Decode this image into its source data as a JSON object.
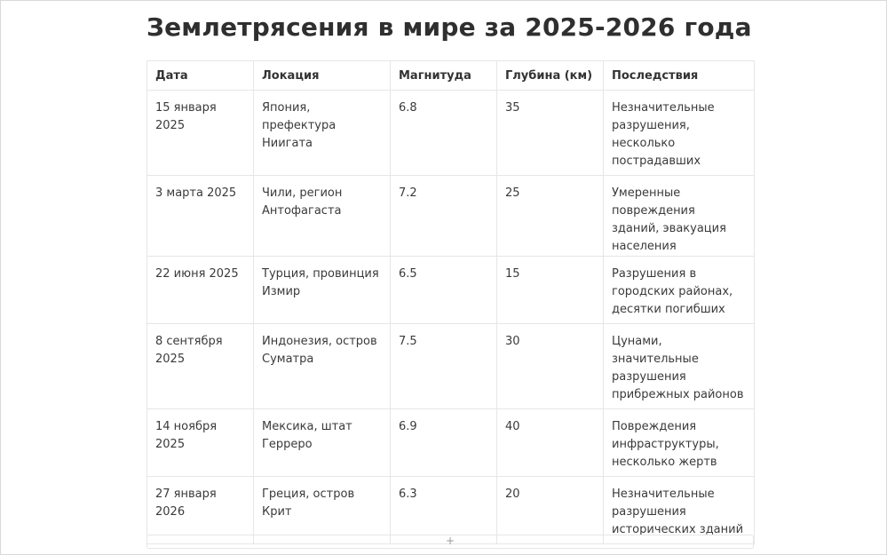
{
  "title": "Землетрясения в мире за 2025-2026 года",
  "table": {
    "columns": [
      "Дата",
      "Локация",
      "Магнитуда",
      "Глубина (км)",
      "Последствия"
    ],
    "rows": [
      [
        "15 января 2025",
        "Япония, префектура Ниигата",
        "6.8",
        "35",
        "Незначительные разрушения, несколько пострадавших"
      ],
      [
        "3 марта 2025",
        "Чили, регион Антофагаста",
        "7.2",
        "25",
        "Умеренные повреждения зданий, эвакуация населения"
      ],
      [
        "22 июня 2025",
        "Турция, провинция Измир",
        "6.5",
        "15",
        "Разрушения в городских районах, десятки погибших"
      ],
      [
        "8 сентября 2025",
        "Индонезия, остров Суматра",
        "7.5",
        "30",
        "Цунами, значительные разрушения прибрежных районов"
      ],
      [
        "14 ноября 2025",
        "Мексика, штат Герреро",
        "6.9",
        "40",
        "Повреждения инфраструктуры, несколько жертв"
      ],
      [
        "27 января 2026",
        "Греция, остров Крит",
        "6.3",
        "20",
        "Незначительные разрушения исторических зданий"
      ]
    ]
  },
  "add_row": {
    "icon": "plus-icon",
    "label": "+"
  }
}
